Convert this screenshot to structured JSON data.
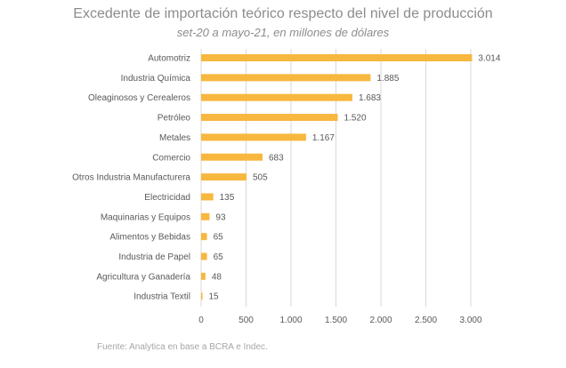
{
  "title": "Excedente de importación teórico respecto del nivel de producción",
  "subtitle": "set-20 a mayo-21, en millones de dólares",
  "source": "Fuente: Analytica en base a BCRA e Indec.",
  "colors": {
    "bar": "#F8B73E",
    "text": "#595959",
    "grid": "#d9d9d9"
  },
  "chart_data": {
    "type": "bar",
    "orientation": "horizontal",
    "categories": [
      "Automotriz",
      "Industria Química",
      "Oleaginosos y Cerealeros",
      "Petróleo",
      "Metales",
      "Comercio",
      "Otros Industria Manufacturera",
      "Electricidad",
      "Maquinarias y Equipos",
      "Alimentos y Bebidas",
      "Industria de Papel",
      "Agricultura y Ganadería",
      "Industria Textil"
    ],
    "values": [
      3014,
      1885,
      1683,
      1520,
      1167,
      683,
      505,
      135,
      93,
      65,
      65,
      48,
      15
    ],
    "value_labels": [
      "3.014",
      "1.885",
      "1.683",
      "1.520",
      "1.167",
      "683",
      "505",
      "135",
      "93",
      "65",
      "65",
      "48",
      "15"
    ],
    "xticks": [
      0,
      500,
      1000,
      1500,
      2000,
      2500,
      3000
    ],
    "xtick_labels": [
      "0",
      "500",
      "1.000",
      "1.500",
      "2.000",
      "2.500",
      "3.000"
    ],
    "xlim": [
      0,
      3000
    ],
    "grid": true
  }
}
